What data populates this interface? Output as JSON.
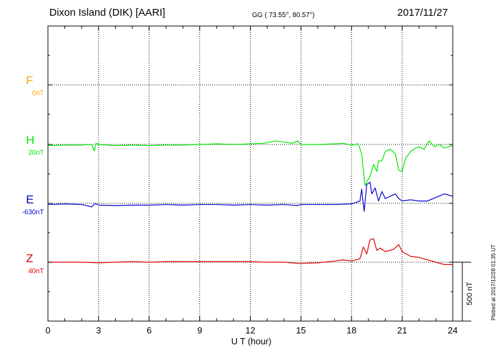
{
  "header": {
    "station": "Dixon Island (DIK)  [AARI]",
    "coords": "GG ( 73.55°,  80.57°)",
    "date": "2017/11/27"
  },
  "plotted_note": "Plotted at 2017/12/28 01:35 UT",
  "scale_label": "500 nT",
  "chart_data": {
    "type": "line",
    "xlabel": "U T (hour)",
    "xlim": [
      0,
      24
    ],
    "xticks": [
      "0",
      "3",
      "6",
      "9",
      "12",
      "15",
      "18",
      "21",
      "24"
    ],
    "scale_bar_nT": 500,
    "series": [
      {
        "name": "F",
        "baseline": "0nT",
        "color": "#ffa500",
        "points": []
      },
      {
        "name": "H",
        "baseline": "20nT",
        "color": "#00e600",
        "points": [
          [
            0,
            -10
          ],
          [
            1,
            -5
          ],
          [
            2,
            -5
          ],
          [
            2.6,
            0
          ],
          [
            2.75,
            -55
          ],
          [
            2.85,
            10
          ],
          [
            3,
            0
          ],
          [
            4,
            -10
          ],
          [
            5,
            -5
          ],
          [
            6,
            -10
          ],
          [
            7,
            -5
          ],
          [
            8,
            -5
          ],
          [
            9,
            0
          ],
          [
            10,
            5
          ],
          [
            11,
            0
          ],
          [
            12,
            5
          ],
          [
            12.8,
            10
          ],
          [
            13.5,
            30
          ],
          [
            14.5,
            10
          ],
          [
            14.8,
            30
          ],
          [
            15,
            0
          ],
          [
            16,
            0
          ],
          [
            17,
            5
          ],
          [
            17.5,
            10
          ],
          [
            18,
            -5
          ],
          [
            18.4,
            5
          ],
          [
            18.6,
            -80
          ],
          [
            18.8,
            -350
          ],
          [
            18.9,
            -320
          ],
          [
            19.1,
            -270
          ],
          [
            19.3,
            -170
          ],
          [
            19.5,
            -230
          ],
          [
            19.6,
            -140
          ],
          [
            19.8,
            -140
          ],
          [
            20,
            -60
          ],
          [
            20.3,
            -40
          ],
          [
            20.6,
            -80
          ],
          [
            20.8,
            -220
          ],
          [
            21,
            -230
          ],
          [
            21.2,
            -120
          ],
          [
            21.5,
            -60
          ],
          [
            21.8,
            -30
          ],
          [
            22,
            -20
          ],
          [
            22.3,
            -40
          ],
          [
            22.6,
            30
          ],
          [
            22.9,
            -20
          ],
          [
            23.2,
            0
          ],
          [
            23.5,
            -30
          ],
          [
            24,
            -10
          ]
        ]
      },
      {
        "name": "E",
        "baseline": "-630nT",
        "color": "#0000cc",
        "points": [
          [
            0,
            -10
          ],
          [
            1,
            -5
          ],
          [
            2,
            -10
          ],
          [
            2.6,
            -30
          ],
          [
            2.8,
            0
          ],
          [
            3,
            -15
          ],
          [
            4,
            -20
          ],
          [
            5,
            -15
          ],
          [
            6,
            -15
          ],
          [
            7,
            -10
          ],
          [
            8,
            -15
          ],
          [
            9,
            -10
          ],
          [
            10,
            -10
          ],
          [
            11,
            -15
          ],
          [
            12,
            -10
          ],
          [
            13,
            -15
          ],
          [
            14,
            -10
          ],
          [
            14.8,
            -20
          ],
          [
            15,
            -10
          ],
          [
            16,
            -10
          ],
          [
            17,
            -10
          ],
          [
            18,
            -5
          ],
          [
            18.3,
            10
          ],
          [
            18.5,
            20
          ],
          [
            18.6,
            120
          ],
          [
            18.75,
            -70
          ],
          [
            18.9,
            160
          ],
          [
            19.1,
            180
          ],
          [
            19.2,
            80
          ],
          [
            19.4,
            130
          ],
          [
            19.6,
            20
          ],
          [
            19.8,
            100
          ],
          [
            20,
            40
          ],
          [
            20.3,
            60
          ],
          [
            20.6,
            80
          ],
          [
            20.8,
            40
          ],
          [
            21,
            20
          ],
          [
            21.5,
            30
          ],
          [
            22,
            20
          ],
          [
            22.5,
            20
          ],
          [
            23,
            50
          ],
          [
            23.5,
            80
          ],
          [
            24,
            60
          ]
        ]
      },
      {
        "name": "Z",
        "baseline": "40nT",
        "color": "#dd0000",
        "points": [
          [
            0,
            0
          ],
          [
            1,
            0
          ],
          [
            2,
            0
          ],
          [
            3,
            -5
          ],
          [
            4,
            0
          ],
          [
            5,
            5
          ],
          [
            6,
            0
          ],
          [
            7,
            5
          ],
          [
            8,
            5
          ],
          [
            9,
            5
          ],
          [
            10,
            5
          ],
          [
            11,
            5
          ],
          [
            12,
            5
          ],
          [
            13,
            0
          ],
          [
            14,
            0
          ],
          [
            14.8,
            -10
          ],
          [
            15,
            -10
          ],
          [
            16,
            -5
          ],
          [
            17,
            10
          ],
          [
            17.5,
            20
          ],
          [
            18,
            10
          ],
          [
            18.5,
            30
          ],
          [
            18.7,
            130
          ],
          [
            18.9,
            70
          ],
          [
            19.1,
            190
          ],
          [
            19.3,
            200
          ],
          [
            19.5,
            100
          ],
          [
            19.7,
            120
          ],
          [
            20,
            90
          ],
          [
            20.5,
            110
          ],
          [
            20.8,
            150
          ],
          [
            21,
            90
          ],
          [
            21.5,
            50
          ],
          [
            22,
            40
          ],
          [
            23,
            0
          ],
          [
            23.5,
            -20
          ],
          [
            24,
            -20
          ]
        ]
      }
    ]
  }
}
